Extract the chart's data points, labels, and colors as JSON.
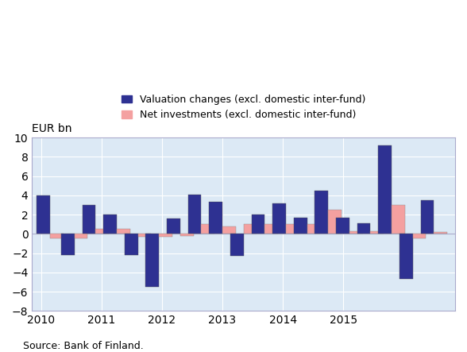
{
  "bar_groups": [
    {
      "x": 2010.15,
      "valuation": 4.0,
      "net": -0.5
    },
    {
      "x": 2010.55,
      "valuation": -2.2,
      "net": -0.5
    },
    {
      "x": 2010.9,
      "valuation": 3.0,
      "net": 0.5
    },
    {
      "x": 2011.25,
      "valuation": 2.0,
      "net": 0.5
    },
    {
      "x": 2011.6,
      "valuation": -2.2,
      "net": -0.3
    },
    {
      "x": 2011.95,
      "valuation": -5.5,
      "net": -0.3
    },
    {
      "x": 2012.3,
      "valuation": 1.6,
      "net": -0.2
    },
    {
      "x": 2012.65,
      "valuation": 4.1,
      "net": 1.0
    },
    {
      "x": 2013.0,
      "valuation": 3.3,
      "net": 0.8
    },
    {
      "x": 2013.35,
      "valuation": -2.3,
      "net": 1.0
    },
    {
      "x": 2013.7,
      "valuation": 2.0,
      "net": 1.0
    },
    {
      "x": 2014.05,
      "valuation": 3.2,
      "net": 1.0
    },
    {
      "x": 2014.4,
      "valuation": 1.7,
      "net": 1.0
    },
    {
      "x": 2014.75,
      "valuation": 4.5,
      "net": 2.5
    },
    {
      "x": 2015.1,
      "valuation": 1.7,
      "net": 0.3
    },
    {
      "x": 2015.45,
      "valuation": 1.1,
      "net": 0.3
    },
    {
      "x": 2015.8,
      "valuation": 9.2,
      "net": 3.0
    },
    {
      "x": 2016.15,
      "valuation": -4.7,
      "net": -0.5
    },
    {
      "x": 2016.5,
      "valuation": 3.5,
      "net": 0.2
    }
  ],
  "blue_color": "#2e3192",
  "pink_color": "#f4a0a0",
  "background_color": "#dce9f5",
  "ylim": [
    -8,
    10
  ],
  "yticks": [
    -8,
    -6,
    -4,
    -2,
    0,
    2,
    4,
    6,
    8,
    10
  ],
  "ylabel": "EUR bn",
  "xtick_labels": [
    "2010",
    "2011",
    "2012",
    "2013",
    "2014",
    "2015"
  ],
  "xtick_positions": [
    2010,
    2011,
    2012,
    2013,
    2014,
    2015
  ],
  "xlim": [
    2009.85,
    2016.85
  ],
  "legend_valuation": "Valuation changes (excl. domestic inter-fund)",
  "legend_net": "Net investments (excl. domestic inter-fund)",
  "source_text": "Source: Bank of Finland.",
  "bar_width": 0.22
}
